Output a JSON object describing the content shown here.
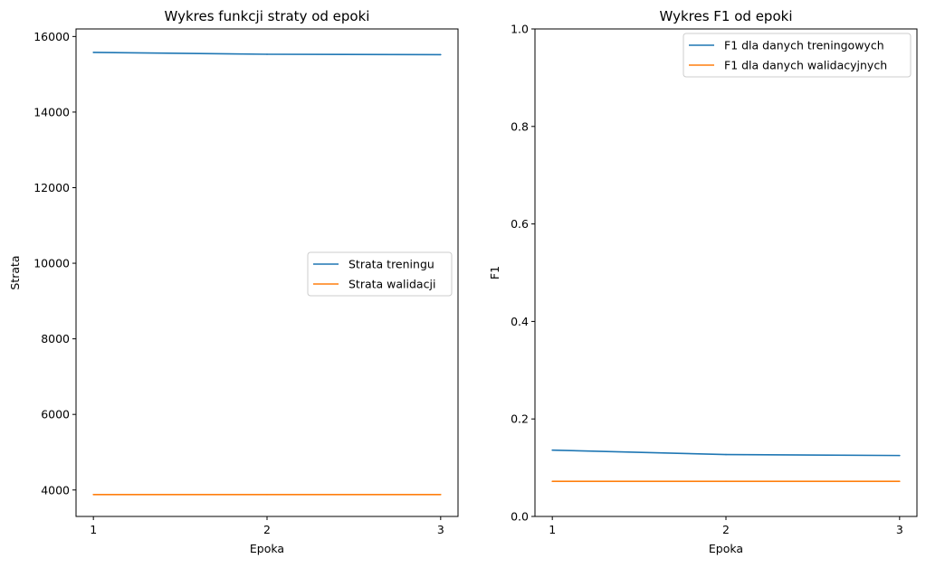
{
  "chart_data": [
    {
      "type": "line",
      "title": "Wykres funkcji straty od epoki",
      "xlabel": "Epoka",
      "ylabel": "Strata",
      "x": [
        1,
        2,
        3
      ],
      "xticks": [
        1,
        2,
        3
      ],
      "xlim": [
        0.9,
        3.1
      ],
      "ylim": [
        3300,
        16200
      ],
      "yticks": [
        4000,
        6000,
        8000,
        10000,
        12000,
        14000,
        16000
      ],
      "grid": false,
      "legend_position": "center-right",
      "series": [
        {
          "name": "Strata treningu",
          "color": "#1f77b4",
          "values": [
            15580,
            15530,
            15520
          ]
        },
        {
          "name": "Strata walidacji",
          "color": "#ff7f0e",
          "values": [
            3880,
            3880,
            3880
          ]
        }
      ]
    },
    {
      "type": "line",
      "title": "Wykres F1 od epoki",
      "xlabel": "Epoka",
      "ylabel": "F1",
      "x": [
        1,
        2,
        3
      ],
      "xticks": [
        1,
        2,
        3
      ],
      "xlim": [
        0.9,
        3.1
      ],
      "ylim": [
        0.0,
        1.0
      ],
      "yticks": [
        0.0,
        0.2,
        0.4,
        0.6,
        0.8,
        1.0
      ],
      "grid": false,
      "legend_position": "top-right",
      "series": [
        {
          "name": "F1 dla danych treningowych",
          "color": "#1f77b4",
          "values": [
            0.136,
            0.127,
            0.125
          ]
        },
        {
          "name": "F1 dla danych walidacyjnych",
          "color": "#ff7f0e",
          "values": [
            0.072,
            0.072,
            0.072
          ]
        }
      ]
    }
  ]
}
